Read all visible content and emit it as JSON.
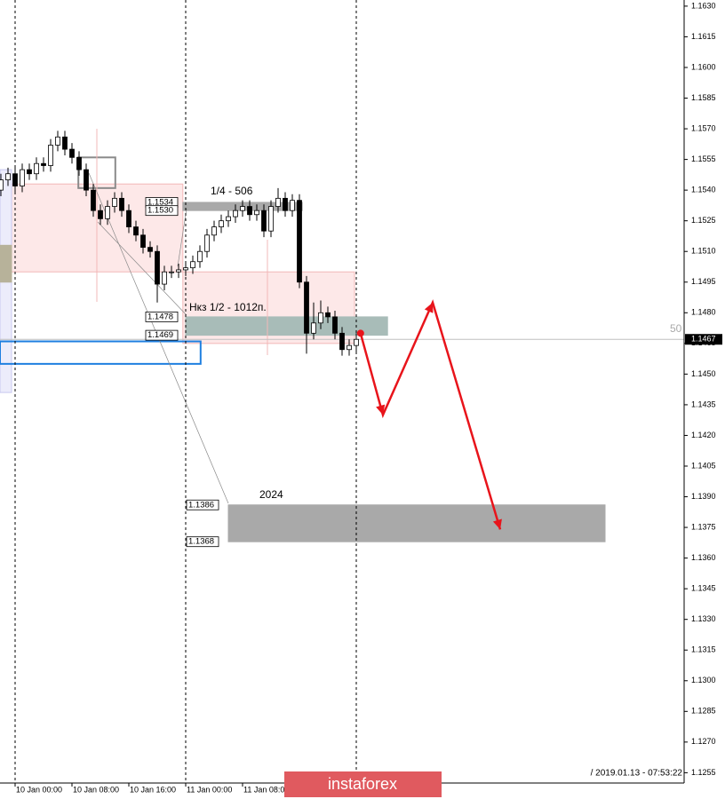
{
  "chart_data": {
    "type": "candlestick",
    "xlim": [
      -2.125,
      94.125
    ],
    "ylim": [
      1.1253,
      1.1633
    ],
    "xticks": [
      {
        "value": 0,
        "label": "10 Jan 00:00"
      },
      {
        "value": 8,
        "label": "10 Jan 08:00"
      },
      {
        "value": 16,
        "label": "10 Jan 16:00"
      },
      {
        "value": 24,
        "label": "11 Jan 00:00"
      },
      {
        "value": 32,
        "label": "11 Jan 08:00"
      }
    ],
    "yticks": [
      {
        "value": 1.163,
        "label": "1.1630"
      },
      1.1615,
      {
        "value": 1.16,
        "label": "1.1600"
      },
      1.1585,
      {
        "value": 1.157,
        "label": "1.1570"
      },
      1.1555,
      {
        "value": 1.154,
        "label": "1.1540"
      },
      1.1525,
      {
        "value": 1.151,
        "label": "1.1510"
      },
      1.1495,
      {
        "value": 1.148,
        "label": "1.1480"
      },
      1.1465,
      {
        "value": 1.145,
        "label": "1.1450"
      },
      1.1435,
      {
        "value": 1.142,
        "label": "1.1420"
      },
      1.1405,
      {
        "value": 1.139,
        "label": "1.1390"
      },
      1.1375,
      {
        "value": 1.136,
        "label": "1.1360"
      },
      1.1345,
      {
        "value": 1.133,
        "label": "1.1330"
      },
      1.1315,
      {
        "value": 1.13,
        "label": "1.1300"
      },
      1.1285,
      {
        "value": 1.127,
        "label": "1.1270"
      },
      1.1255
    ],
    "separators": [
      0,
      24,
      48
    ],
    "x": [
      -2,
      -1,
      0,
      1,
      2,
      3,
      4,
      5,
      6,
      7,
      8,
      9,
      10,
      11,
      12,
      13,
      14,
      15,
      16,
      17,
      18,
      19,
      20,
      21,
      22,
      23,
      24,
      25,
      26,
      27,
      28,
      29,
      30,
      31,
      32,
      33,
      34,
      35,
      36,
      37,
      38,
      39,
      40,
      41,
      42,
      43,
      44,
      45,
      46,
      47,
      48
    ],
    "open": [
      1.154,
      1.1545,
      1.1548,
      1.1542,
      1.155,
      1.1548,
      1.1553,
      1.1552,
      1.1562,
      1.1566,
      1.156,
      1.1556,
      1.155,
      1.154,
      1.153,
      1.1526,
      1.1532,
      1.1536,
      1.153,
      1.1522,
      1.1518,
      1.1512,
      1.151,
      1.1494,
      1.15,
      1.15,
      1.1501,
      1.1502,
      1.1505,
      1.151,
      1.1518,
      1.1522,
      1.1525,
      1.1527,
      1.153,
      1.1532,
      1.1528,
      1.153,
      1.152,
      1.1532,
      1.1536,
      1.153,
      1.1535,
      1.1495,
      1.147,
      1.1475,
      1.148,
      1.1478,
      1.147,
      1.1462,
      1.1464
    ],
    "high": [
      1.1548,
      1.1551,
      1.1551,
      1.1553,
      1.1553,
      1.1556,
      1.1556,
      1.1565,
      1.1569,
      1.1569,
      1.1563,
      1.1559,
      1.1553,
      1.1543,
      1.1533,
      1.1535,
      1.1539,
      1.1539,
      1.1533,
      1.1525,
      1.1521,
      1.1515,
      1.1513,
      1.1503,
      1.1503,
      1.1504,
      1.1505,
      1.1508,
      1.1513,
      1.1521,
      1.1525,
      1.1528,
      1.153,
      1.1533,
      1.1535,
      1.1535,
      1.1533,
      1.1533,
      1.1535,
      1.1541,
      1.1539,
      1.1538,
      1.1538,
      1.1498,
      1.1485,
      1.1486,
      1.1483,
      1.1481,
      1.1473,
      1.1467,
      1.147
    ],
    "low": [
      1.1537,
      1.1542,
      1.1539,
      1.1539,
      1.1545,
      1.1545,
      1.1549,
      1.1549,
      1.1559,
      1.1557,
      1.1553,
      1.1547,
      1.1537,
      1.1527,
      1.1523,
      1.1523,
      1.1529,
      1.1527,
      1.1519,
      1.1515,
      1.1509,
      1.1507,
      1.1485,
      1.1491,
      1.1497,
      1.1497,
      1.1498,
      1.1499,
      1.1502,
      1.1507,
      1.1515,
      1.1519,
      1.1522,
      1.1524,
      1.1527,
      1.1525,
      1.1525,
      1.1517,
      1.1517,
      1.1529,
      1.1527,
      1.1527,
      1.1492,
      1.146,
      1.1467,
      1.1472,
      1.1475,
      1.1467,
      1.1459,
      1.1459,
      1.1461
    ],
    "close": [
      1.1545,
      1.1548,
      1.1542,
      1.155,
      1.1548,
      1.1553,
      1.1552,
      1.1562,
      1.1566,
      1.156,
      1.1556,
      1.155,
      1.154,
      1.153,
      1.1526,
      1.1532,
      1.1536,
      1.153,
      1.1522,
      1.1518,
      1.1512,
      1.151,
      1.1494,
      1.15,
      1.15,
      1.1501,
      1.1502,
      1.1505,
      1.151,
      1.1518,
      1.1522,
      1.1525,
      1.1527,
      1.153,
      1.1532,
      1.1528,
      1.153,
      1.152,
      1.1532,
      1.1536,
      1.153,
      1.1535,
      1.1495,
      1.147,
      1.1475,
      1.148,
      1.1478,
      1.147,
      1.1462,
      1.1464,
      1.1467
    ],
    "zones": [
      {
        "x": [
          -2.125,
          23.6
        ],
        "y": [
          1.15,
          1.1543
        ],
        "fill": "#fde8e8",
        "stroke": "#f2b8b8"
      },
      {
        "x": [
          23.6,
          47.75
        ],
        "y": [
          1.1465,
          1.15
        ],
        "fill": "#fde8e8",
        "stroke": "#f2b8b8"
      },
      {
        "x": [
          -2.125,
          -0.5
        ],
        "y": [
          1.1441,
          1.155
        ],
        "fill": "#ececfb",
        "stroke": "#c8c8f0"
      },
      {
        "x": [
          -2.125,
          -0.5
        ],
        "y": [
          1.1495,
          1.1513
        ],
        "fill": "#b7b29a",
        "stroke": "#b7b29a"
      },
      {
        "x": [
          23.6,
          40.4
        ],
        "y": [
          1.153,
          1.1534
        ],
        "fill": "#a9a9a9",
        "stroke": "#a9a9a9"
      },
      {
        "x": [
          24,
          52.4
        ],
        "y": [
          1.1469,
          1.1478
        ],
        "fill": "#a8bcb8",
        "stroke": "#a8bcb8"
      },
      {
        "x": [
          30,
          83
        ],
        "y": [
          1.1368,
          1.1386
        ],
        "fill": "#a9a9a9",
        "stroke": "#a9a9a9"
      },
      {
        "x": [
          -2.125,
          26.1
        ],
        "y": [
          1.1455,
          1.1466
        ],
        "fill": "none",
        "stroke": "#1e7fe0"
      },
      {
        "x": [
          8.9,
          14.1
        ],
        "y": [
          1.1541,
          1.1556
        ],
        "fill": "none",
        "stroke": "#8a8a8a"
      }
    ],
    "price_labels": [
      {
        "value": 1.1534,
        "label": "1.1534"
      },
      {
        "value": 1.153,
        "label": "1.1530"
      },
      {
        "value": 1.1478,
        "label": "1.1478"
      },
      {
        "value": 1.1469,
        "label": "1.1469"
      },
      {
        "value": 1.1386,
        "label": "1.1386"
      },
      {
        "value": 1.1368,
        "label": "1.1368"
      }
    ],
    "annotations": [
      "1/4 - 506",
      "Нкз 1/2 - 1012п.",
      "2024",
      "50"
    ],
    "current_price": 1.1467,
    "forecast": {
      "color": "#e8141b",
      "x": [
        48.6,
        51.75,
        58.75,
        68.25
      ],
      "values": [
        1.147,
        1.143,
        1.1485,
        1.1374
      ]
    },
    "timestamp": "/ 2019.01.13 - 07:53:22",
    "watermark": "instaforex"
  }
}
